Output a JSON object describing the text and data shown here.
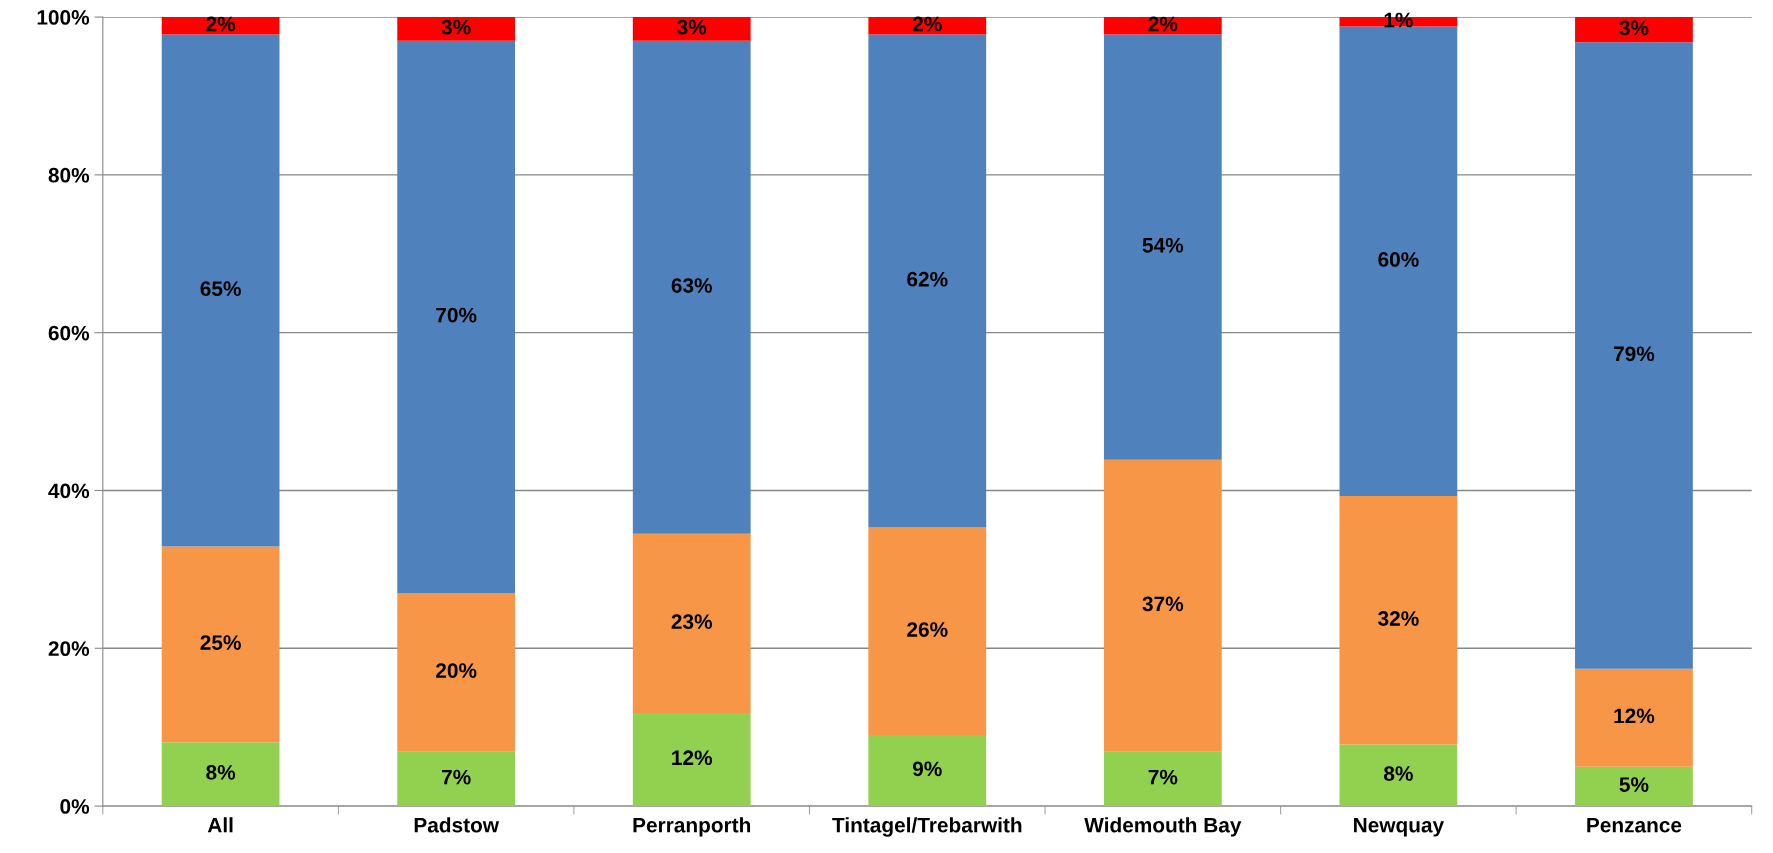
{
  "chart_data": {
    "type": "bar",
    "stacked": true,
    "categories": [
      "All",
      "Padstow",
      "Perranporth",
      "Tintagel/Trebarwith",
      "Widemouth Bay",
      "Newquay",
      "Penzance"
    ],
    "series": [
      {
        "color": "#92d050",
        "values": [
          8.1,
          6.9,
          11.8,
          9.0,
          6.9,
          7.8,
          5.0
        ],
        "value_labels": [
          "8%",
          "7%",
          "12%",
          "9%",
          "7%",
          "8%",
          "5%"
        ]
      },
      {
        "color": "#f79646",
        "values": [
          24.8,
          20.1,
          22.7,
          26.3,
          37.0,
          31.5,
          12.4
        ],
        "value_labels": [
          "25%",
          "20%",
          "23%",
          "26%",
          "37%",
          "32%",
          "12%"
        ]
      },
      {
        "color": "#4f81bd",
        "values": [
          64.9,
          70.0,
          62.5,
          62.5,
          53.9,
          59.5,
          79.4
        ],
        "value_labels": [
          "65%",
          "70%",
          "63%",
          "62%",
          "54%",
          "60%",
          "79%"
        ]
      },
      {
        "color": "#ff0000",
        "values": [
          2.2,
          3.0,
          3.0,
          2.2,
          2.2,
          1.2,
          3.2
        ],
        "value_labels": [
          "2%",
          "3%",
          "3%",
          "2%",
          "2%",
          "1%",
          "3%"
        ]
      }
    ],
    "ylim": [
      0,
      100
    ],
    "yticks": [
      {
        "value": 0,
        "label": "0%"
      },
      {
        "value": 20,
        "label": "20%"
      },
      {
        "value": 40,
        "label": "40%"
      },
      {
        "value": 60,
        "label": "60%"
      },
      {
        "value": 80,
        "label": "80%"
      },
      {
        "value": 100,
        "label": "100%"
      }
    ],
    "grid": "y",
    "legend": false
  }
}
